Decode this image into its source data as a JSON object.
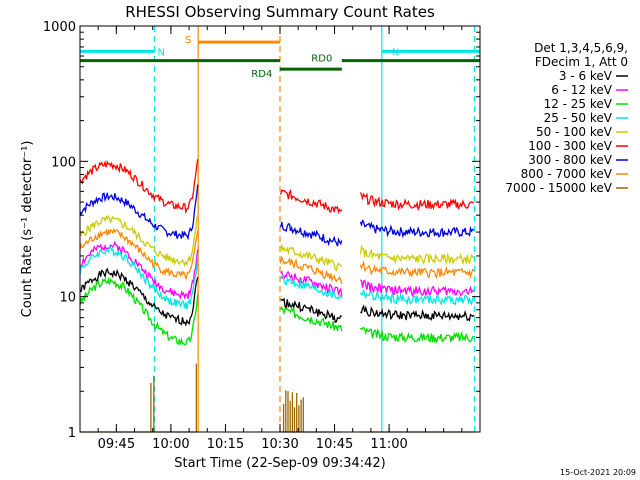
{
  "chart_data": {
    "type": "line",
    "title": "RHESSI Observing Summary Count Rates",
    "xlabel": "Start Time (22-Sep-09 09:34:42)",
    "ylabel": "Count Rate (s⁻¹ detector⁻¹)",
    "yscale": "log",
    "ylim": [
      1,
      1000
    ],
    "xlim_min": [
      -10,
      100
    ],
    "x_ticks": [
      {
        "label": "09:45",
        "min": 0
      },
      {
        "label": "10:00",
        "min": 15
      },
      {
        "label": "10:15",
        "min": 30
      },
      {
        "label": "10:30",
        "min": 45
      },
      {
        "label": "10:45",
        "min": 60
      },
      {
        "label": "11:00",
        "min": 75
      }
    ],
    "y_ticks": [
      {
        "label": "1",
        "v": 1
      },
      {
        "label": "10",
        "v": 10
      },
      {
        "label": "100",
        "v": 100
      },
      {
        "label": "1000",
        "v": 1000
      }
    ],
    "legend_header": [
      "Det 1,3,4,5,6,9,",
      "FDecim 1, Att 0"
    ],
    "legend_position": "right",
    "gaps": [
      [
        22.5,
        45
      ],
      [
        62,
        67
      ]
    ],
    "series": [
      {
        "name": "3 - 6 keV",
        "color": "#000000",
        "amp": 15,
        "base": 6.5,
        "post": 7.2,
        "seed": 1
      },
      {
        "name": "6 - 12 keV",
        "color": "#ff00ff",
        "amp": 24,
        "base": 10,
        "post": 11,
        "seed": 2
      },
      {
        "name": "12 - 25 keV",
        "color": "#00dd00",
        "amp": 13,
        "base": 4.5,
        "post": 5,
        "seed": 3
      },
      {
        "name": "25 - 50 keV",
        "color": "#00e5e5",
        "amp": 22,
        "base": 8.5,
        "post": 9.5,
        "seed": 4
      },
      {
        "name": "50 - 100 keV",
        "color": "#cccc00",
        "amp": 37,
        "base": 18,
        "post": 19,
        "seed": 5
      },
      {
        "name": "100 - 300 keV",
        "color": "#ff0000",
        "amp": 95,
        "base": 45,
        "post": 48,
        "seed": 6
      },
      {
        "name": "300 - 800 keV",
        "color": "#0000dd",
        "amp": 55,
        "base": 28,
        "post": 30,
        "seed": 7
      },
      {
        "name": "800 - 7000 keV",
        "color": "#ff8800",
        "amp": 30,
        "base": 14,
        "post": 15,
        "seed": 8
      },
      {
        "name": "7000 - 15000 keV",
        "color": "#9a6600",
        "amp": 1,
        "base": 1,
        "post": 1,
        "seed": 9
      }
    ],
    "annotations": [
      {
        "label": "N",
        "color": "#00e5e5",
        "start": -10,
        "end": 10.5,
        "v": 650
      },
      {
        "label": "N",
        "color": "#00e5e5",
        "start": 73,
        "end": 100,
        "v": 650
      },
      {
        "label": "S",
        "color": "#ff8800",
        "start": 22.5,
        "end": 45,
        "v": 760
      },
      {
        "label": "RD0",
        "color": "#006600",
        "start": 62,
        "end": 100,
        "v": 555
      },
      {
        "label": "RD4",
        "color": "#006600",
        "start": 45,
        "end": 62,
        "v": 480
      },
      {
        "label": "",
        "color": "#006600",
        "start": -10,
        "end": 45,
        "v": 555
      }
    ],
    "vlines": [
      {
        "min": 10.5,
        "color": "#00e5e5",
        "dashed": true
      },
      {
        "min": 22.5,
        "color": "#ff8800",
        "dashed": false
      },
      {
        "min": 45,
        "color": "#ff8800",
        "dashed": true
      },
      {
        "min": 73,
        "color": "#00e5e5",
        "dashed": false
      },
      {
        "min": 98.5,
        "color": "#00e5e5",
        "dashed": true
      }
    ],
    "timestamp": "15-Oct-2021 20:09"
  }
}
